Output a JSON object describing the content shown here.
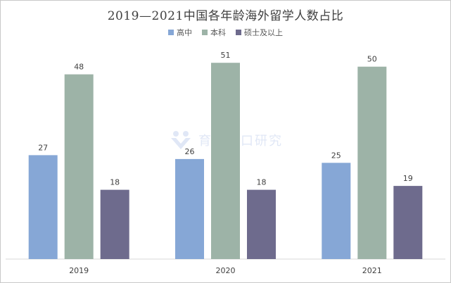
{
  "chart_data": {
    "type": "bar",
    "title": "2019—2021中国各年龄海外留学人数占比",
    "categories": [
      "2019",
      "2020",
      "2021"
    ],
    "series": [
      {
        "name": "高中",
        "values": [
          27,
          26,
          25
        ],
        "color": "#86a7d6"
      },
      {
        "name": "本科",
        "values": [
          48,
          51,
          50
        ],
        "color": "#9db3a7"
      },
      {
        "name": "硕士及以上",
        "values": [
          18,
          18,
          19
        ],
        "color": "#6e6b8d"
      }
    ],
    "ylim": [
      0,
      60
    ],
    "grid": false,
    "legend_position": "top-center",
    "xlabel": "",
    "ylabel": ""
  },
  "watermark": {
    "text": "育娲人口研究",
    "icon": "yuwa-logo-icon"
  }
}
